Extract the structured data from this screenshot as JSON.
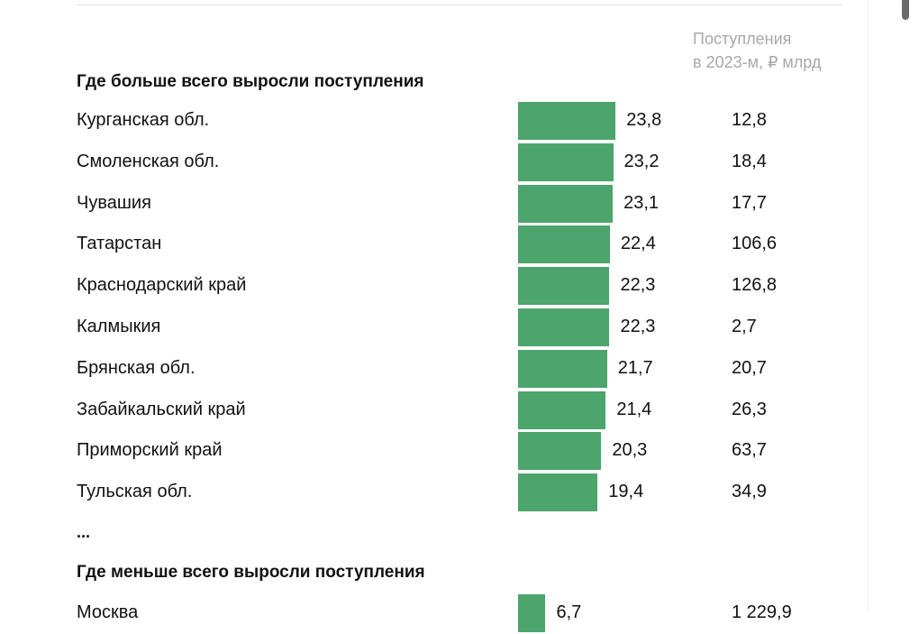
{
  "chart_data": {
    "type": "bar",
    "column_header": [
      "Поступления",
      "в 2023-м, ₽ млрд"
    ],
    "sections": [
      {
        "title": "Где больше всего выросли поступления",
        "rows": [
          {
            "name": "Курганская обл.",
            "value": 23.8,
            "value_label": "23,8",
            "revenue": "12,8"
          },
          {
            "name": "Смоленская обл.",
            "value": 23.2,
            "value_label": "23,2",
            "revenue": "18,4"
          },
          {
            "name": "Чувашия",
            "value": 23.1,
            "value_label": "23,1",
            "revenue": "17,7"
          },
          {
            "name": "Татарстан",
            "value": 22.4,
            "value_label": "22,4",
            "revenue": "106,6"
          },
          {
            "name": "Краснодарский край",
            "value": 22.3,
            "value_label": "22,3",
            "revenue": "126,8"
          },
          {
            "name": "Калмыкия",
            "value": 22.3,
            "value_label": "22,3",
            "revenue": "2,7"
          },
          {
            "name": "Брянская обл.",
            "value": 21.7,
            "value_label": "21,7",
            "revenue": "20,7"
          },
          {
            "name": "Забайкальский край",
            "value": 21.4,
            "value_label": "21,4",
            "revenue": "26,3"
          },
          {
            "name": "Приморский край",
            "value": 20.3,
            "value_label": "20,3",
            "revenue": "63,7"
          },
          {
            "name": "Тульская обл.",
            "value": 19.4,
            "value_label": "19,4",
            "revenue": "34,9"
          }
        ]
      },
      {
        "title": "Где меньше всего выросли поступления",
        "rows": [
          {
            "name": "Москва",
            "value": 6.7,
            "value_label": "6,7",
            "revenue": "1 229,9"
          }
        ]
      }
    ],
    "ellipsis": "...",
    "bar_color": "#4ba56c"
  }
}
